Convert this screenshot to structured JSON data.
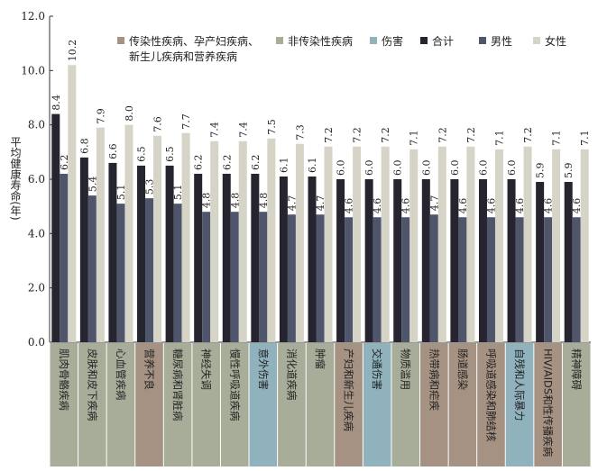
{
  "chart_data": {
    "type": "bar",
    "ylabel": "平均健康寿命(年)",
    "ylim": [
      0,
      12
    ],
    "yticks": [
      "0.0",
      "2.0",
      "4.0",
      "6.0",
      "8.0",
      "10.0",
      "12.0"
    ],
    "grid": false,
    "legend_position": "top",
    "categories": [
      "肌肉骨骼疾病",
      "皮肤和皮下疾病",
      "心血管疾病",
      "营养不良",
      "糖尿病和肾脏病",
      "神经失调",
      "慢性呼吸道疾病",
      "意外伤害",
      "消化道疾病",
      "肿瘤",
      "产妇和新生儿疾病",
      "交通伤害",
      "物质滥用",
      "热带病和疟疾",
      "肠道感染",
      "呼吸道感染和肺结核",
      "自残和人际暴力",
      "HIV/AIDS和性传播疾病",
      "精神障碍"
    ],
    "category_groups": [
      "非传染性疾病",
      "非传染性疾病",
      "非传染性疾病",
      "传染性疾病、孕产妇疾病、新生儿疾病和营养疾病",
      "非传染性疾病",
      "非传染性疾病",
      "非传染性疾病",
      "伤害",
      "非传染性疾病",
      "非传染性疾病",
      "传染性疾病、孕产妇疾病、新生儿疾病和营养疾病",
      "伤害",
      "非传染性疾病",
      "传染性疾病、孕产妇疾病、新生儿疾病和营养疾病",
      "传染性疾病、孕产妇疾病、新生儿疾病和营养疾病",
      "传染性疾病、孕产妇疾病、新生儿疾病和营养疾病",
      "伤害",
      "传染性疾病、孕产妇疾病、新生儿疾病和营养疾病",
      "非传染性疾病"
    ],
    "series": [
      {
        "name": "合计",
        "values": [
          8.4,
          6.8,
          6.6,
          6.5,
          6.5,
          6.2,
          6.2,
          6.2,
          6.1,
          6.1,
          6.0,
          6.0,
          6.0,
          6.0,
          6.0,
          6.0,
          6.0,
          5.9,
          5.9
        ]
      },
      {
        "name": "男性",
        "values": [
          6.2,
          5.4,
          5.1,
          5.3,
          5.1,
          4.8,
          4.8,
          4.8,
          4.7,
          4.7,
          4.6,
          4.6,
          4.6,
          4.7,
          4.6,
          4.6,
          4.6,
          4.6,
          4.6
        ]
      },
      {
        "name": "女性",
        "values": [
          10.2,
          7.9,
          8.0,
          7.6,
          7.7,
          7.4,
          7.4,
          7.5,
          7.3,
          7.2,
          7.2,
          7.2,
          7.1,
          7.2,
          7.2,
          7.1,
          7.2,
          7.1,
          7.1
        ]
      }
    ],
    "legend": [
      {
        "label": "传染性疾病、孕产妇疾病、",
        "label2": "新生儿疾病和营养疾病",
        "color": "#a59283",
        "kind": "group"
      },
      {
        "label": "非传染性疾病",
        "color": "#a8ad9a",
        "kind": "group"
      },
      {
        "label": "伤害",
        "color": "#8fb2bd",
        "kind": "group"
      },
      {
        "label": "合计",
        "color": "#26242e",
        "kind": "series"
      },
      {
        "label": "男性",
        "color": "#4f566b",
        "kind": "series"
      },
      {
        "label": "女性",
        "color": "#d6d3c7",
        "kind": "series"
      }
    ],
    "group_colors": {
      "传染性疾病、孕产妇疾病、新生儿疾病和营养疾病": "#a59283",
      "非传染性疾病": "#a8ad9a",
      "伤害": "#8fb2bd"
    }
  }
}
